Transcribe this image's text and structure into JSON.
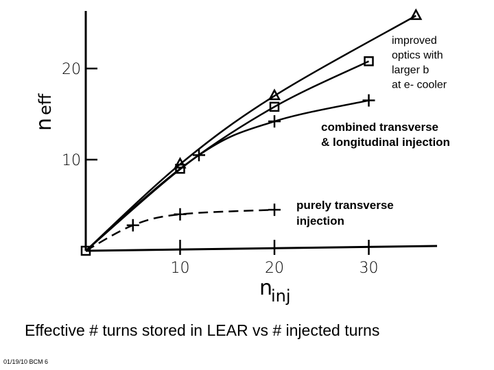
{
  "chart_data": {
    "type": "line",
    "xlabel_main": "n",
    "xlabel_sub": "inj",
    "ylabel_main": "n",
    "ylabel_sub": "eff",
    "xlim": [
      0,
      37
    ],
    "ylim": [
      0,
      26
    ],
    "x_ticks": [
      10,
      20,
      30
    ],
    "x_tick_labels": [
      "10",
      "20",
      "30"
    ],
    "y_ticks": [
      10,
      20
    ],
    "y_tick_labels": [
      "10",
      "20"
    ],
    "grid": false,
    "series": [
      {
        "marker": "triangle",
        "style": "solid",
        "x": [
          0,
          10,
          20,
          35
        ],
        "y": [
          0,
          9.5,
          17,
          25.8
        ]
      },
      {
        "marker": "square",
        "style": "solid",
        "x": [
          0,
          10,
          20,
          30
        ],
        "y": [
          0,
          9,
          15.8,
          20.8
        ]
      },
      {
        "marker": "plus",
        "style": "solid",
        "x": [
          0,
          12,
          20,
          30
        ],
        "y": [
          0,
          10.5,
          14.2,
          16.5
        ]
      },
      {
        "marker": "plus",
        "style": "dashed",
        "x": [
          0,
          5,
          10,
          20
        ],
        "y": [
          0,
          2.8,
          4,
          4.5
        ]
      }
    ],
    "annotations": [
      {
        "lines": [
          "improved",
          "optics with",
          "larger b",
          "at e- cooler"
        ],
        "style": "normal"
      },
      {
        "lines": [
          "combined transverse",
          "& longitudinal injection"
        ],
        "style": "bold"
      },
      {
        "lines": [
          "purely transverse",
          "injection"
        ],
        "style": "bold"
      }
    ]
  },
  "caption": "Effective #  turns stored in LEAR  vs # injected turns",
  "footer": "01/19/10 BCM 6"
}
